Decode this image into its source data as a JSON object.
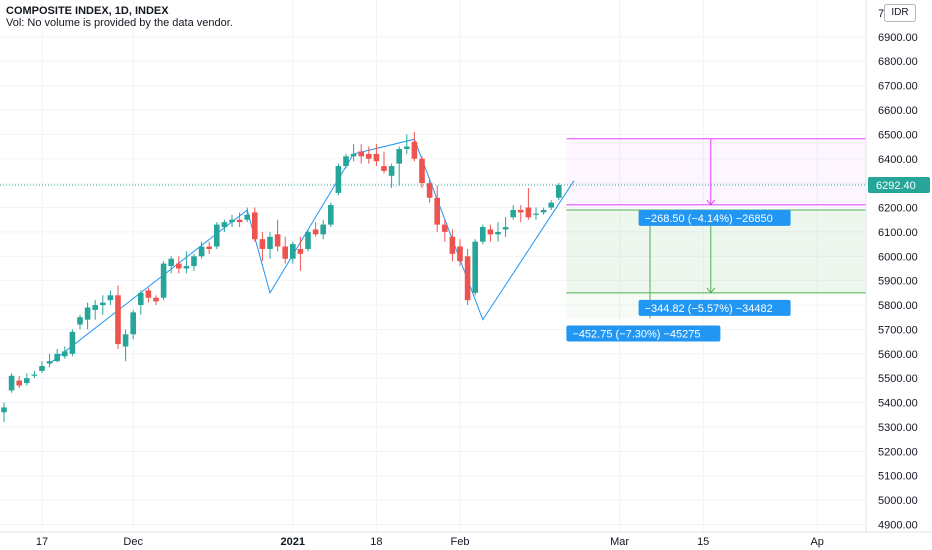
{
  "header": {
    "title": "COMPOSITE INDEX, 1D, INDEX",
    "volume_note": "Vol: No volume is provided by the data vendor.",
    "currency_badge": "IDR"
  },
  "colors": {
    "up": "#26a69a",
    "down": "#ef5350",
    "trendline": "#2196f3",
    "price_line": "#26a69a",
    "target_box": "#e040fb",
    "stop_box": "#4caf50",
    "label_bg": "#2196f3"
  },
  "chart_data": {
    "type": "candlestick",
    "y_axis": {
      "ticks": [
        4900,
        5000,
        5100,
        5200,
        5300,
        5400,
        5500,
        5600,
        5700,
        5800,
        5900,
        6000,
        6100,
        6200,
        6300,
        6400,
        6500,
        6600,
        6700,
        6800,
        6900
      ],
      "tick_labels": [
        "4900.00",
        "5000.00",
        "5100.00",
        "5200.00",
        "5300.00",
        "5400.00",
        "5500.00",
        "5600.00",
        "5700.00",
        "5800.00",
        "5900.00",
        "6000.00",
        "6100.00",
        "6200.00",
        "6300.00",
        "6400.00",
        "6500.00",
        "6600.00",
        "6700.00",
        "6800.00",
        "6900.00"
      ],
      "top_partial_label": "7"
    },
    "x_axis": {
      "labels": [
        {
          "text": "17",
          "bar": 5,
          "bold": false
        },
        {
          "text": "Dec",
          "bar": 17,
          "bold": false
        },
        {
          "text": "2021",
          "bar": 38,
          "bold": true
        },
        {
          "text": "18",
          "bar": 49,
          "bold": false
        },
        {
          "text": "Feb",
          "bar": 60,
          "bold": false
        },
        {
          "text": "Mar",
          "bar": 81,
          "bold": false
        },
        {
          "text": "15",
          "bar": 92,
          "bold": false
        },
        {
          "text": "Ap",
          "bar": 107,
          "bold": false
        }
      ]
    },
    "last_price": 6292.4,
    "last_price_label": "6292.40",
    "candles": [
      {
        "o": 5360,
        "h": 5400,
        "l": 5320,
        "c": 5380
      },
      {
        "o": 5450,
        "h": 5520,
        "l": 5440,
        "c": 5510
      },
      {
        "o": 5490,
        "h": 5510,
        "l": 5460,
        "c": 5470
      },
      {
        "o": 5480,
        "h": 5520,
        "l": 5470,
        "c": 5500
      },
      {
        "o": 5510,
        "h": 5530,
        "l": 5500,
        "c": 5515
      },
      {
        "o": 5530,
        "h": 5570,
        "l": 5520,
        "c": 5550
      },
      {
        "o": 5560,
        "h": 5600,
        "l": 5545,
        "c": 5570
      },
      {
        "o": 5570,
        "h": 5620,
        "l": 5565,
        "c": 5600
      },
      {
        "o": 5590,
        "h": 5630,
        "l": 5580,
        "c": 5610
      },
      {
        "o": 5600,
        "h": 5700,
        "l": 5590,
        "c": 5690
      },
      {
        "o": 5720,
        "h": 5760,
        "l": 5700,
        "c": 5750
      },
      {
        "o": 5740,
        "h": 5810,
        "l": 5700,
        "c": 5790
      },
      {
        "o": 5780,
        "h": 5820,
        "l": 5740,
        "c": 5800
      },
      {
        "o": 5800,
        "h": 5840,
        "l": 5760,
        "c": 5810
      },
      {
        "o": 5820,
        "h": 5860,
        "l": 5800,
        "c": 5840
      },
      {
        "o": 5840,
        "h": 5880,
        "l": 5620,
        "c": 5640
      },
      {
        "o": 5630,
        "h": 5700,
        "l": 5570,
        "c": 5680
      },
      {
        "o": 5680,
        "h": 5780,
        "l": 5660,
        "c": 5770
      },
      {
        "o": 5800,
        "h": 5860,
        "l": 5760,
        "c": 5850
      },
      {
        "o": 5860,
        "h": 5870,
        "l": 5810,
        "c": 5830
      },
      {
        "o": 5830,
        "h": 5840,
        "l": 5800,
        "c": 5815
      },
      {
        "o": 5830,
        "h": 5980,
        "l": 5820,
        "c": 5970
      },
      {
        "o": 5960,
        "h": 6000,
        "l": 5930,
        "c": 5990
      },
      {
        "o": 5970,
        "h": 6000,
        "l": 5930,
        "c": 5950
      },
      {
        "o": 5950,
        "h": 6020,
        "l": 5930,
        "c": 5960
      },
      {
        "o": 5960,
        "h": 6010,
        "l": 5940,
        "c": 6000
      },
      {
        "o": 6000,
        "h": 6060,
        "l": 5990,
        "c": 6040
      },
      {
        "o": 6040,
        "h": 6060,
        "l": 6010,
        "c": 6030
      },
      {
        "o": 6040,
        "h": 6140,
        "l": 6030,
        "c": 6130
      },
      {
        "o": 6120,
        "h": 6150,
        "l": 6100,
        "c": 6140
      },
      {
        "o": 6140,
        "h": 6170,
        "l": 6120,
        "c": 6150
      },
      {
        "o": 6150,
        "h": 6180,
        "l": 6120,
        "c": 6140
      },
      {
        "o": 6150,
        "h": 6200,
        "l": 6140,
        "c": 6170
      },
      {
        "o": 6180,
        "h": 6200,
        "l": 6060,
        "c": 6070
      },
      {
        "o": 6070,
        "h": 6100,
        "l": 5980,
        "c": 6030
      },
      {
        "o": 6030,
        "h": 6100,
        "l": 5990,
        "c": 6080
      },
      {
        "o": 6090,
        "h": 6150,
        "l": 6020,
        "c": 6040
      },
      {
        "o": 6040,
        "h": 6080,
        "l": 5970,
        "c": 5990
      },
      {
        "o": 5990,
        "h": 6060,
        "l": 5970,
        "c": 6050
      },
      {
        "o": 6030,
        "h": 6080,
        "l": 5940,
        "c": 6010
      },
      {
        "o": 6030,
        "h": 6110,
        "l": 6020,
        "c": 6100
      },
      {
        "o": 6110,
        "h": 6140,
        "l": 6080,
        "c": 6090
      },
      {
        "o": 6090,
        "h": 6150,
        "l": 6070,
        "c": 6130
      },
      {
        "o": 6130,
        "h": 6220,
        "l": 6120,
        "c": 6210
      },
      {
        "o": 6260,
        "h": 6380,
        "l": 6250,
        "c": 6370
      },
      {
        "o": 6370,
        "h": 6420,
        "l": 6360,
        "c": 6410
      },
      {
        "o": 6410,
        "h": 6460,
        "l": 6390,
        "c": 6420
      },
      {
        "o": 6430,
        "h": 6460,
        "l": 6380,
        "c": 6410
      },
      {
        "o": 6420,
        "h": 6450,
        "l": 6380,
        "c": 6400
      },
      {
        "o": 6420,
        "h": 6460,
        "l": 6370,
        "c": 6390
      },
      {
        "o": 6370,
        "h": 6430,
        "l": 6340,
        "c": 6350
      },
      {
        "o": 6330,
        "h": 6380,
        "l": 6280,
        "c": 6370
      },
      {
        "o": 6380,
        "h": 6450,
        "l": 6290,
        "c": 6440
      },
      {
        "o": 6440,
        "h": 6500,
        "l": 6420,
        "c": 6450
      },
      {
        "o": 6470,
        "h": 6510,
        "l": 6390,
        "c": 6400
      },
      {
        "o": 6400,
        "h": 6410,
        "l": 6280,
        "c": 6300
      },
      {
        "o": 6300,
        "h": 6320,
        "l": 6220,
        "c": 6240
      },
      {
        "o": 6240,
        "h": 6290,
        "l": 6100,
        "c": 6130
      },
      {
        "o": 6130,
        "h": 6150,
        "l": 6060,
        "c": 6100
      },
      {
        "o": 6080,
        "h": 6110,
        "l": 5980,
        "c": 6010
      },
      {
        "o": 6040,
        "h": 6070,
        "l": 5960,
        "c": 5980
      },
      {
        "o": 6000,
        "h": 6030,
        "l": 5800,
        "c": 5820
      },
      {
        "o": 5850,
        "h": 6070,
        "l": 5840,
        "c": 6060
      },
      {
        "o": 6060,
        "h": 6130,
        "l": 6050,
        "c": 6120
      },
      {
        "o": 6110,
        "h": 6130,
        "l": 6060,
        "c": 6090
      },
      {
        "o": 6090,
        "h": 6140,
        "l": 6060,
        "c": 6100
      },
      {
        "o": 6110,
        "h": 6160,
        "l": 6080,
        "c": 6120
      },
      {
        "o": 6160,
        "h": 6210,
        "l": 6150,
        "c": 6190
      },
      {
        "o": 6190,
        "h": 6210,
        "l": 6140,
        "c": 6180
      },
      {
        "o": 6200,
        "h": 6280,
        "l": 6150,
        "c": 6160
      },
      {
        "o": 6170,
        "h": 6200,
        "l": 6150,
        "c": 6175
      },
      {
        "o": 6180,
        "h": 6200,
        "l": 6170,
        "c": 6190
      },
      {
        "o": 6200,
        "h": 6230,
        "l": 6190,
        "c": 6220
      },
      {
        "o": 6240,
        "h": 6300,
        "l": 6230,
        "c": 6292
      }
    ],
    "trendlines": [
      {
        "points": [
          [
            6,
            5560
          ],
          [
            32,
            6190
          ],
          [
            35,
            5850
          ],
          [
            46,
            6420
          ],
          [
            54,
            6480
          ],
          [
            63,
            5740
          ],
          [
            75,
            6310
          ]
        ]
      }
    ],
    "projection": {
      "x_start": 74,
      "x_end": 109,
      "upper_level": 6482,
      "dashed_level": 6211,
      "middle_level": 6190,
      "lower_level": 5850,
      "bottom_level": 5745,
      "arrow1_x": 93,
      "arrow2_x": 93,
      "arrow3_x": 85,
      "label1": "−268.50 (−4.14%) −26850",
      "label2": "−344.82 (−5.57%) −34482",
      "label3": "−452.75 (−7.30%) −45275"
    }
  }
}
